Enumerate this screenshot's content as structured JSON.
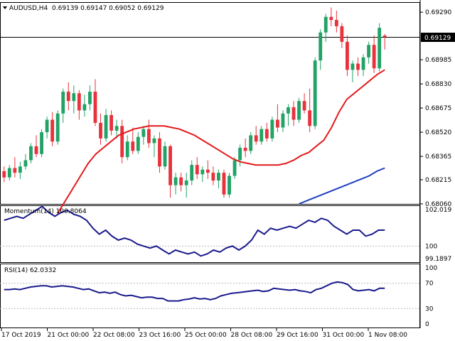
{
  "header": {
    "symbol": "AUDUSD,H4",
    "ohlc": "0.69139 0.69147 0.69052 0.69129"
  },
  "price_panel": {
    "current_price": "0.69129",
    "y_ticks": [
      "0.69290",
      "0.69129",
      "0.68985",
      "0.68830",
      "0.68675",
      "0.68520",
      "0.68365",
      "0.68215",
      "0.68060"
    ]
  },
  "momentum_panel": {
    "label": "Momentum(14) 100.8064",
    "y_ticks": [
      "102.019",
      "100",
      "99.1897"
    ]
  },
  "rsi_panel": {
    "label": "RSI(14) 62.0332",
    "y_ticks": [
      "100",
      "70",
      "30",
      "0"
    ]
  },
  "x_axis": {
    "labels": [
      "17 Oct 2019",
      "21 Oct 00:00",
      "22 Oct 08:00",
      "23 Oct 16:00",
      "25 Oct 00:00",
      "28 Oct 08:00",
      "29 Oct 16:00",
      "31 Oct 00:00",
      "1 Nov 08:00"
    ]
  },
  "colors": {
    "bull": "#21a366",
    "bear": "#e8323c",
    "ma_fast": "#e31a1c",
    "ma_slow": "#1f3fbf",
    "osc": "#1a1a8c",
    "grid": "#bbbbbb"
  },
  "chart_data": [
    {
      "type": "candlestick",
      "title": "AUDUSD,H4",
      "ylim": [
        0.6806,
        0.6935
      ],
      "candles": [
        {
          "o": 0.6827,
          "h": 0.683,
          "l": 0.682,
          "c": 0.6823
        },
        {
          "o": 0.6823,
          "h": 0.6831,
          "l": 0.6821,
          "c": 0.6829
        },
        {
          "o": 0.6829,
          "h": 0.6836,
          "l": 0.6823,
          "c": 0.6826
        },
        {
          "o": 0.6826,
          "h": 0.6833,
          "l": 0.6822,
          "c": 0.683
        },
        {
          "o": 0.683,
          "h": 0.6838,
          "l": 0.6828,
          "c": 0.6834
        },
        {
          "o": 0.6834,
          "h": 0.6845,
          "l": 0.6832,
          "c": 0.6843
        },
        {
          "o": 0.6843,
          "h": 0.685,
          "l": 0.6836,
          "c": 0.6838
        },
        {
          "o": 0.6838,
          "h": 0.6854,
          "l": 0.6836,
          "c": 0.6852
        },
        {
          "o": 0.6852,
          "h": 0.6862,
          "l": 0.6848,
          "c": 0.686
        },
        {
          "o": 0.686,
          "h": 0.6865,
          "l": 0.6843,
          "c": 0.6846
        },
        {
          "o": 0.6846,
          "h": 0.6866,
          "l": 0.6844,
          "c": 0.6864
        },
        {
          "o": 0.6864,
          "h": 0.688,
          "l": 0.6858,
          "c": 0.6878
        },
        {
          "o": 0.6878,
          "h": 0.6884,
          "l": 0.6866,
          "c": 0.6872
        },
        {
          "o": 0.6872,
          "h": 0.6882,
          "l": 0.6864,
          "c": 0.6877
        },
        {
          "o": 0.6877,
          "h": 0.6879,
          "l": 0.686,
          "c": 0.6866
        },
        {
          "o": 0.6866,
          "h": 0.6876,
          "l": 0.6862,
          "c": 0.687
        },
        {
          "o": 0.687,
          "h": 0.6882,
          "l": 0.6866,
          "c": 0.6878
        },
        {
          "o": 0.6878,
          "h": 0.6886,
          "l": 0.6856,
          "c": 0.6858
        },
        {
          "o": 0.6858,
          "h": 0.6864,
          "l": 0.6844,
          "c": 0.6848
        },
        {
          "o": 0.6848,
          "h": 0.6867,
          "l": 0.6846,
          "c": 0.6863
        },
        {
          "o": 0.6863,
          "h": 0.6866,
          "l": 0.685,
          "c": 0.6853
        },
        {
          "o": 0.6853,
          "h": 0.686,
          "l": 0.6848,
          "c": 0.6856
        },
        {
          "o": 0.6856,
          "h": 0.686,
          "l": 0.6832,
          "c": 0.6836
        },
        {
          "o": 0.6836,
          "h": 0.685,
          "l": 0.6834,
          "c": 0.6846
        },
        {
          "o": 0.6846,
          "h": 0.6855,
          "l": 0.6838,
          "c": 0.684
        },
        {
          "o": 0.684,
          "h": 0.6852,
          "l": 0.6838,
          "c": 0.6849
        },
        {
          "o": 0.6849,
          "h": 0.6856,
          "l": 0.6844,
          "c": 0.6854
        },
        {
          "o": 0.6854,
          "h": 0.686,
          "l": 0.6842,
          "c": 0.6845
        },
        {
          "o": 0.6845,
          "h": 0.685,
          "l": 0.6836,
          "c": 0.6848
        },
        {
          "o": 0.6848,
          "h": 0.6852,
          "l": 0.6826,
          "c": 0.683
        },
        {
          "o": 0.683,
          "h": 0.6846,
          "l": 0.6828,
          "c": 0.6843
        },
        {
          "o": 0.6843,
          "h": 0.6844,
          "l": 0.681,
          "c": 0.6818
        },
        {
          "o": 0.6818,
          "h": 0.6826,
          "l": 0.6812,
          "c": 0.6823
        },
        {
          "o": 0.6823,
          "h": 0.6826,
          "l": 0.6814,
          "c": 0.6818
        },
        {
          "o": 0.6818,
          "h": 0.6826,
          "l": 0.681,
          "c": 0.6821
        },
        {
          "o": 0.6821,
          "h": 0.6834,
          "l": 0.6818,
          "c": 0.6831
        },
        {
          "o": 0.6831,
          "h": 0.6836,
          "l": 0.6822,
          "c": 0.6825
        },
        {
          "o": 0.6825,
          "h": 0.683,
          "l": 0.682,
          "c": 0.6828
        },
        {
          "o": 0.6828,
          "h": 0.6834,
          "l": 0.6822,
          "c": 0.6826
        },
        {
          "o": 0.6826,
          "h": 0.683,
          "l": 0.6818,
          "c": 0.6821
        },
        {
          "o": 0.6821,
          "h": 0.6828,
          "l": 0.6816,
          "c": 0.6826
        },
        {
          "o": 0.6826,
          "h": 0.6828,
          "l": 0.681,
          "c": 0.6812
        },
        {
          "o": 0.6812,
          "h": 0.6826,
          "l": 0.681,
          "c": 0.6824
        },
        {
          "o": 0.6824,
          "h": 0.6836,
          "l": 0.6822,
          "c": 0.6834
        },
        {
          "o": 0.6834,
          "h": 0.6844,
          "l": 0.683,
          "c": 0.6842
        },
        {
          "o": 0.6842,
          "h": 0.6848,
          "l": 0.6836,
          "c": 0.684
        },
        {
          "o": 0.684,
          "h": 0.6852,
          "l": 0.6838,
          "c": 0.685
        },
        {
          "o": 0.685,
          "h": 0.6856,
          "l": 0.6844,
          "c": 0.6846
        },
        {
          "o": 0.6846,
          "h": 0.6856,
          "l": 0.6844,
          "c": 0.6854
        },
        {
          "o": 0.6854,
          "h": 0.6858,
          "l": 0.6846,
          "c": 0.6848
        },
        {
          "o": 0.6848,
          "h": 0.6862,
          "l": 0.6846,
          "c": 0.686
        },
        {
          "o": 0.686,
          "h": 0.687,
          "l": 0.6852,
          "c": 0.6855
        },
        {
          "o": 0.6855,
          "h": 0.6866,
          "l": 0.6852,
          "c": 0.6864
        },
        {
          "o": 0.6864,
          "h": 0.687,
          "l": 0.6856,
          "c": 0.6868
        },
        {
          "o": 0.6868,
          "h": 0.6872,
          "l": 0.6856,
          "c": 0.686
        },
        {
          "o": 0.686,
          "h": 0.6874,
          "l": 0.6858,
          "c": 0.6872
        },
        {
          "o": 0.6872,
          "h": 0.6877,
          "l": 0.6864,
          "c": 0.6866
        },
        {
          "o": 0.6866,
          "h": 0.688,
          "l": 0.6852,
          "c": 0.6856
        },
        {
          "o": 0.6856,
          "h": 0.69,
          "l": 0.6854,
          "c": 0.6898
        },
        {
          "o": 0.6898,
          "h": 0.6918,
          "l": 0.6892,
          "c": 0.6916
        },
        {
          "o": 0.6916,
          "h": 0.6928,
          "l": 0.691,
          "c": 0.6926
        },
        {
          "o": 0.6926,
          "h": 0.6932,
          "l": 0.692,
          "c": 0.6924
        },
        {
          "o": 0.6924,
          "h": 0.693,
          "l": 0.6916,
          "c": 0.692
        },
        {
          "o": 0.692,
          "h": 0.6922,
          "l": 0.6906,
          "c": 0.691
        },
        {
          "o": 0.691,
          "h": 0.6914,
          "l": 0.6888,
          "c": 0.6892
        },
        {
          "o": 0.6892,
          "h": 0.6898,
          "l": 0.6884,
          "c": 0.6896
        },
        {
          "o": 0.6896,
          "h": 0.69,
          "l": 0.6888,
          "c": 0.6892
        },
        {
          "o": 0.6892,
          "h": 0.6902,
          "l": 0.6888,
          "c": 0.69
        },
        {
          "o": 0.69,
          "h": 0.691,
          "l": 0.6896,
          "c": 0.6908
        },
        {
          "o": 0.6908,
          "h": 0.6914,
          "l": 0.689,
          "c": 0.6893
        },
        {
          "o": 0.6893,
          "h": 0.6922,
          "l": 0.6891,
          "c": 0.6919
        },
        {
          "o": 0.6914,
          "h": 0.6915,
          "l": 0.6905,
          "c": 0.6913
        }
      ],
      "ma_fast": [
        0.68,
        0.6808,
        0.6816,
        0.6824,
        0.6832,
        0.6838,
        0.6842,
        0.6846,
        0.685,
        0.6852,
        0.6854,
        0.6855,
        0.6856,
        0.6856,
        0.6856,
        0.6855,
        0.6854,
        0.6852,
        0.685,
        0.6847,
        0.6844,
        0.6841,
        0.6838,
        0.6835,
        0.6833,
        0.6832,
        0.6831,
        0.6831,
        0.6831,
        0.6831,
        0.6832,
        0.6834,
        0.6837,
        0.6839,
        0.6843,
        0.6847,
        0.6855,
        0.6865,
        0.6873,
        0.6877,
        0.6881,
        0.6885,
        0.6889,
        0.6892
      ],
      "ma_slow": [
        0.6806,
        0.6808,
        0.681,
        0.6812,
        0.6814,
        0.6816,
        0.6818,
        0.682,
        0.6822,
        0.6824,
        0.6827,
        0.6829
      ]
    },
    {
      "type": "line",
      "title": "Momentum(14) 100.8064",
      "ylim": [
        99.1897,
        102.019
      ],
      "values": [
        101.3,
        101.4,
        101.5,
        101.4,
        101.6,
        101.8,
        102.0,
        101.7,
        101.5,
        101.7,
        101.8,
        101.6,
        101.5,
        101.3,
        100.9,
        100.6,
        100.8,
        100.5,
        100.3,
        100.4,
        100.3,
        100.1,
        100.0,
        99.9,
        100.0,
        99.8,
        99.6,
        99.8,
        99.7,
        99.6,
        99.7,
        99.5,
        99.6,
        99.8,
        99.7,
        99.9,
        100.0,
        99.8,
        100.0,
        100.3,
        100.8,
        100.6,
        100.9,
        100.8,
        100.9,
        101.0,
        100.9,
        101.1,
        101.3,
        101.2,
        101.4,
        101.3,
        101.0,
        100.8,
        100.6,
        100.8,
        100.8,
        100.5,
        100.6,
        100.8,
        100.8064
      ]
    },
    {
      "type": "line",
      "title": "RSI(14) 62.0332",
      "ylim": [
        0,
        100
      ],
      "values": [
        60,
        60,
        61,
        60,
        62,
        64,
        65,
        66,
        66,
        64,
        65,
        66,
        65,
        64,
        62,
        60,
        61,
        58,
        55,
        56,
        54,
        56,
        52,
        50,
        51,
        49,
        47,
        48,
        48,
        46,
        46,
        42,
        42,
        42,
        44,
        45,
        47,
        45,
        46,
        44,
        46,
        50,
        52,
        54,
        55,
        56,
        57,
        58,
        59,
        57,
        58,
        62,
        61,
        60,
        59,
        60,
        58,
        57,
        55,
        60,
        62,
        66,
        70,
        72,
        71,
        68,
        60,
        58,
        59,
        60,
        58,
        62,
        62.0332
      ]
    }
  ]
}
